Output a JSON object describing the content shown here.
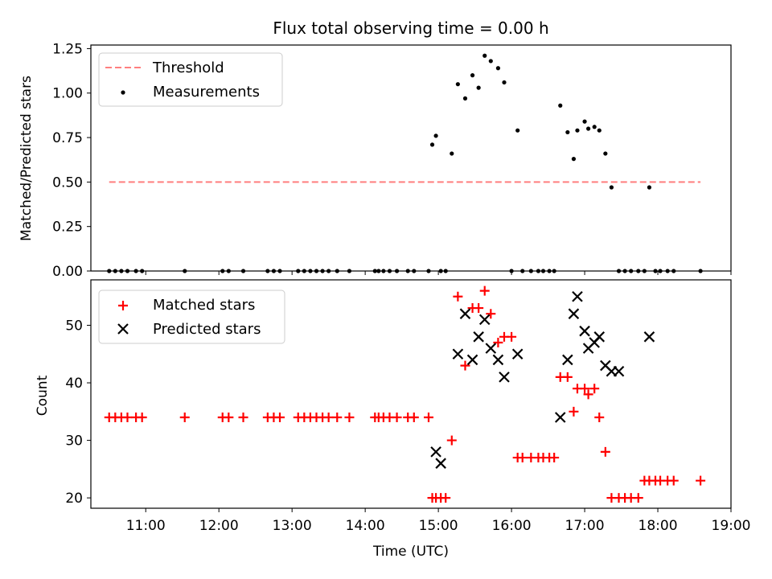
{
  "title": "Flux total observing time = 0.00 h",
  "xlabel": "Time (UTC)",
  "x_ticks": [
    "11:00",
    "12:00",
    "13:00",
    "14:00",
    "15:00",
    "16:00",
    "17:00",
    "18:00",
    "19:00"
  ],
  "colors": {
    "threshold": "#ff7f7f",
    "measurements": "#000000",
    "matched": "#ff0000",
    "predicted": "#000000"
  },
  "chart_data": [
    {
      "type": "scatter",
      "ylabel": "Matched/Predicted stars",
      "xlim": [
        "10:15",
        "19:00"
      ],
      "ylim": [
        0,
        1.27
      ],
      "y_ticks": [
        "0.00",
        "0.25",
        "0.50",
        "0.75",
        "1.00",
        "1.25"
      ],
      "legend": {
        "placement": "top-left",
        "entries": [
          "Threshold",
          "Measurements"
        ]
      },
      "threshold": {
        "name": "Threshold",
        "value": 0.5,
        "x_range": [
          "10:30",
          "18:35"
        ]
      },
      "series": [
        {
          "name": "Measurements",
          "x": [
            "10:30",
            "10:35",
            "10:40",
            "10:45",
            "10:52",
            "10:57",
            "11:32",
            "12:03",
            "12:08",
            "12:20",
            "12:40",
            "12:45",
            "12:50",
            "13:05",
            "13:10",
            "13:15",
            "13:20",
            "13:25",
            "13:30",
            "13:37",
            "13:47",
            "14:08",
            "14:11",
            "14:15",
            "14:20",
            "14:26",
            "14:35",
            "14:40",
            "14:52",
            "14:55",
            "14:58",
            "15:02",
            "15:06",
            "15:11",
            "15:16",
            "15:22",
            "15:28",
            "15:33",
            "15:38",
            "15:43",
            "15:49",
            "15:54",
            "16:00",
            "16:05",
            "16:09",
            "16:16",
            "16:22",
            "16:26",
            "16:31",
            "16:35",
            "16:40",
            "16:46",
            "16:51",
            "16:54",
            "17:00",
            "17:03",
            "17:08",
            "17:12",
            "17:17",
            "17:22",
            "17:28",
            "17:33",
            "17:38",
            "17:44",
            "17:49",
            "17:53",
            "17:58",
            "18:02",
            "18:08",
            "18:13",
            "18:35"
          ],
          "y": [
            0,
            0,
            0,
            0,
            0,
            0,
            0,
            0,
            0,
            0,
            0,
            0,
            0,
            0,
            0,
            0,
            0,
            0,
            0,
            0,
            0,
            0,
            0,
            0,
            0,
            0,
            0,
            0,
            0,
            0.71,
            0.76,
            0,
            0,
            0.66,
            1.05,
            0.97,
            1.1,
            1.03,
            1.21,
            1.18,
            1.14,
            1.06,
            0,
            0.79,
            0,
            0,
            0,
            0,
            0,
            0,
            0.93,
            0.78,
            0.63,
            0.79,
            0.84,
            0.8,
            0.81,
            0.79,
            0.66,
            0.47,
            0,
            0,
            0,
            0,
            0,
            0.47,
            0,
            0,
            0,
            0,
            0
          ]
        }
      ]
    },
    {
      "type": "scatter",
      "ylabel": "Count",
      "xlim": [
        "10:15",
        "19:00"
      ],
      "ylim": [
        18.2,
        57.9
      ],
      "y_ticks": [
        "20",
        "30",
        "40",
        "50"
      ],
      "legend": {
        "placement": "top-left",
        "entries": [
          "Matched stars",
          "Predicted stars"
        ]
      },
      "series": [
        {
          "name": "Matched stars",
          "x": [
            "10:30",
            "10:35",
            "10:40",
            "10:45",
            "10:52",
            "10:57",
            "11:32",
            "12:03",
            "12:08",
            "12:20",
            "12:40",
            "12:45",
            "12:50",
            "13:05",
            "13:10",
            "13:15",
            "13:20",
            "13:25",
            "13:30",
            "13:37",
            "13:47",
            "14:08",
            "14:11",
            "14:15",
            "14:20",
            "14:26",
            "14:35",
            "14:40",
            "14:52",
            "14:55",
            "14:58",
            "15:02",
            "15:06",
            "15:11",
            "15:16",
            "15:22",
            "15:28",
            "15:33",
            "15:38",
            "15:43",
            "15:49",
            "15:54",
            "16:00",
            "16:05",
            "16:09",
            "16:16",
            "16:22",
            "16:26",
            "16:31",
            "16:35",
            "16:40",
            "16:46",
            "16:51",
            "16:54",
            "17:00",
            "17:03",
            "17:08",
            "17:12",
            "17:17",
            "17:22",
            "17:28",
            "17:33",
            "17:38",
            "17:44",
            "17:49",
            "17:53",
            "17:58",
            "18:02",
            "18:08",
            "18:13",
            "18:35"
          ],
          "y": [
            34,
            34,
            34,
            34,
            34,
            34,
            34,
            34,
            34,
            34,
            34,
            34,
            34,
            34,
            34,
            34,
            34,
            34,
            34,
            34,
            34,
            34,
            34,
            34,
            34,
            34,
            34,
            34,
            34,
            20,
            20,
            20,
            20,
            30,
            55,
            43,
            53,
            53,
            56,
            52,
            47,
            48,
            48,
            27,
            27,
            27,
            27,
            27,
            27,
            27,
            41,
            41,
            35,
            39,
            39,
            38,
            39,
            34,
            28,
            20,
            20,
            20,
            20,
            20,
            23,
            23,
            23,
            23,
            23,
            23,
            23
          ]
        },
        {
          "name": "Predicted stars",
          "x": [
            "14:58",
            "15:02",
            "15:16",
            "15:22",
            "15:28",
            "15:33",
            "15:38",
            "15:43",
            "15:49",
            "15:54",
            "16:05",
            "16:40",
            "16:46",
            "16:51",
            "16:54",
            "17:00",
            "17:03",
            "17:08",
            "17:12",
            "17:17",
            "17:22",
            "17:28",
            "17:53"
          ],
          "y": [
            28,
            26,
            45,
            52,
            44,
            48,
            51,
            46,
            44,
            41,
            45,
            34,
            44,
            52,
            55,
            49,
            46,
            47,
            48,
            43,
            42,
            42,
            48
          ]
        }
      ]
    }
  ]
}
